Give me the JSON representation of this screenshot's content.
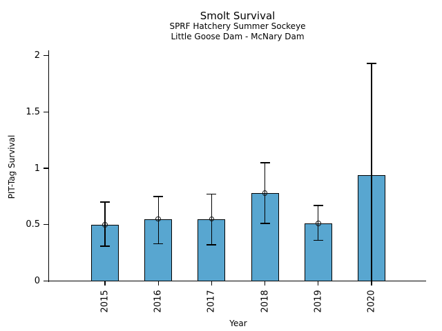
{
  "chart_data": {
    "type": "bar",
    "title": "Smolt Survival",
    "subtitles": [
      "SPRF Hatchery Summer Sockeye",
      "Little Goose Dam - McNary Dam"
    ],
    "xlabel": "Year",
    "ylabel": "PIT-Tag Survival",
    "categories": [
      "2015",
      "2016",
      "2017",
      "2018",
      "2019",
      "2020"
    ],
    "values": [
      0.5,
      0.55,
      0.55,
      0.78,
      0.51,
      0.94
    ],
    "error_low": [
      0.31,
      0.33,
      0.32,
      0.51,
      0.36,
      0.0
    ],
    "error_high": [
      0.7,
      0.75,
      0.77,
      1.05,
      0.67,
      1.93
    ],
    "point_markers": [
      true,
      true,
      true,
      true,
      true,
      false
    ],
    "yticks": [
      0,
      0.5,
      1,
      1.5,
      2
    ],
    "ytick_labels": [
      "0",
      "0.5",
      "1",
      "1.5",
      "2"
    ],
    "ylim": [
      0,
      2.05
    ],
    "grid": false,
    "legend": null,
    "bar_color": "#58A6D0",
    "bar_edge_color": "#000000",
    "error_color": "#000000",
    "axis_color": "#000000",
    "text_color": "#000000"
  }
}
